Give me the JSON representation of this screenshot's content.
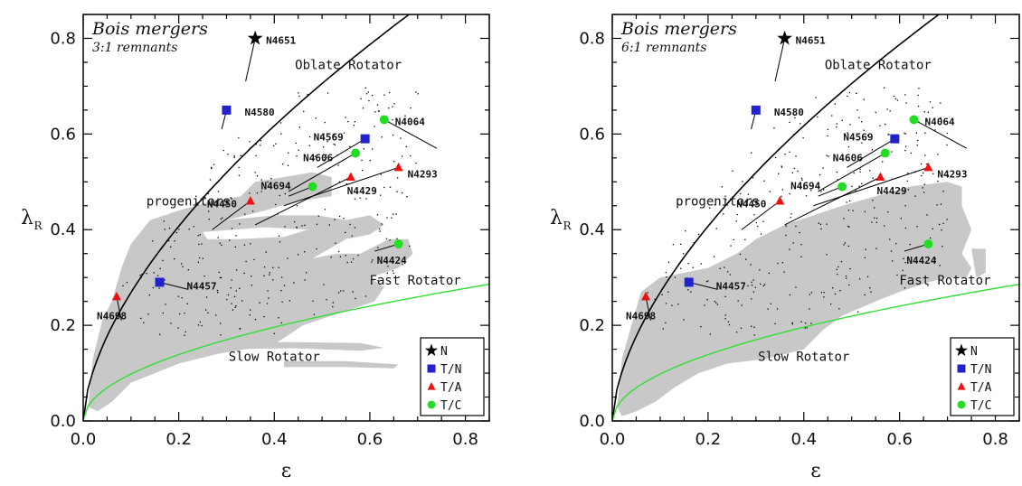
{
  "chart_data": [
    {
      "type": "scatter",
      "corner_title": "Bois mergers",
      "corner_subtitle": "3:1 remnants",
      "xlabel": "ε",
      "ylabel": "λ",
      "ylabel_sub": "R",
      "xlim": [
        0.0,
        0.85
      ],
      "ylim": [
        0.0,
        0.85
      ],
      "x_ticks": [
        "0.0",
        "0.2",
        "0.4",
        "0.6",
        "0.8"
      ],
      "y_ticks": [
        "0.0",
        "0.2",
        "0.4",
        "0.6",
        "0.8"
      ],
      "grid": false,
      "legend_position": "bottom-right",
      "annotations": {
        "oblate": "Oblate Rotator",
        "fast": "Fast Rotator",
        "slow": "Slow Rotator",
        "progenitors": "progenitors"
      },
      "curves": [
        {
          "kind": "oblate-rotator-line",
          "color": "#000000"
        },
        {
          "kind": "fast-slow-divide",
          "formula": "0.31*sqrt(eps)",
          "color": "#33dd33"
        }
      ],
      "series": [
        {
          "name": "N",
          "marker": "star",
          "color": "#000000",
          "points": [
            {
              "label": "N4651",
              "x": 0.36,
              "y": 0.8
            }
          ]
        },
        {
          "name": "T/N",
          "marker": "square",
          "color": "#2222cc",
          "points": [
            {
              "label": "N4580",
              "x": 0.3,
              "y": 0.65
            },
            {
              "label": "N4569",
              "x": 0.59,
              "y": 0.59
            },
            {
              "label": "N4457",
              "x": 0.16,
              "y": 0.29
            }
          ]
        },
        {
          "name": "T/A",
          "marker": "triangle",
          "color": "#ee1111",
          "points": [
            {
              "label": "N4293",
              "x": 0.66,
              "y": 0.53
            },
            {
              "label": "N4429",
              "x": 0.56,
              "y": 0.51
            },
            {
              "label": "N4450",
              "x": 0.35,
              "y": 0.46
            },
            {
              "label": "N4698",
              "x": 0.07,
              "y": 0.26
            }
          ]
        },
        {
          "name": "T/C",
          "marker": "circle",
          "color": "#22dd22",
          "points": [
            {
              "label": "N4064",
              "x": 0.63,
              "y": 0.63
            },
            {
              "label": "N4606",
              "x": 0.57,
              "y": 0.56
            },
            {
              "label": "N4694",
              "x": 0.48,
              "y": 0.49
            },
            {
              "label": "N4424",
              "x": 0.66,
              "y": 0.37
            }
          ]
        }
      ]
    },
    {
      "type": "scatter",
      "corner_title": "Bois mergers",
      "corner_subtitle": "6:1 remnants",
      "xlabel": "ε",
      "ylabel": "λ",
      "ylabel_sub": "R",
      "xlim": [
        0.0,
        0.85
      ],
      "ylim": [
        0.0,
        0.85
      ],
      "x_ticks": [
        "0.0",
        "0.2",
        "0.4",
        "0.6",
        "0.8"
      ],
      "y_ticks": [
        "0.0",
        "0.2",
        "0.4",
        "0.6",
        "0.8"
      ],
      "grid": false,
      "legend_position": "bottom-right",
      "annotations": {
        "oblate": "Oblate Rotator",
        "fast": "Fast Rotator",
        "slow": "Slow Rotator",
        "progenitors": "progenitors"
      },
      "curves": [
        {
          "kind": "oblate-rotator-line",
          "color": "#000000"
        },
        {
          "kind": "fast-slow-divide",
          "formula": "0.31*sqrt(eps)",
          "color": "#33dd33"
        }
      ],
      "series": [
        {
          "name": "N",
          "marker": "star",
          "color": "#000000",
          "points": [
            {
              "label": "N4651",
              "x": 0.36,
              "y": 0.8
            }
          ]
        },
        {
          "name": "T/N",
          "marker": "square",
          "color": "#2222cc",
          "points": [
            {
              "label": "N4580",
              "x": 0.3,
              "y": 0.65
            },
            {
              "label": "N4569",
              "x": 0.59,
              "y": 0.59
            },
            {
              "label": "N4457",
              "x": 0.16,
              "y": 0.29
            }
          ]
        },
        {
          "name": "T/A",
          "marker": "triangle",
          "color": "#ee1111",
          "points": [
            {
              "label": "N4293",
              "x": 0.66,
              "y": 0.53
            },
            {
              "label": "N4429",
              "x": 0.56,
              "y": 0.51
            },
            {
              "label": "N4450",
              "x": 0.35,
              "y": 0.46
            },
            {
              "label": "N4698",
              "x": 0.07,
              "y": 0.26
            }
          ]
        },
        {
          "name": "T/C",
          "marker": "circle",
          "color": "#22dd22",
          "points": [
            {
              "label": "N4064",
              "x": 0.63,
              "y": 0.63
            },
            {
              "label": "N4606",
              "x": 0.57,
              "y": 0.56
            },
            {
              "label": "N4694",
              "x": 0.48,
              "y": 0.49
            },
            {
              "label": "N4424",
              "x": 0.66,
              "y": 0.37
            }
          ]
        }
      ]
    }
  ]
}
